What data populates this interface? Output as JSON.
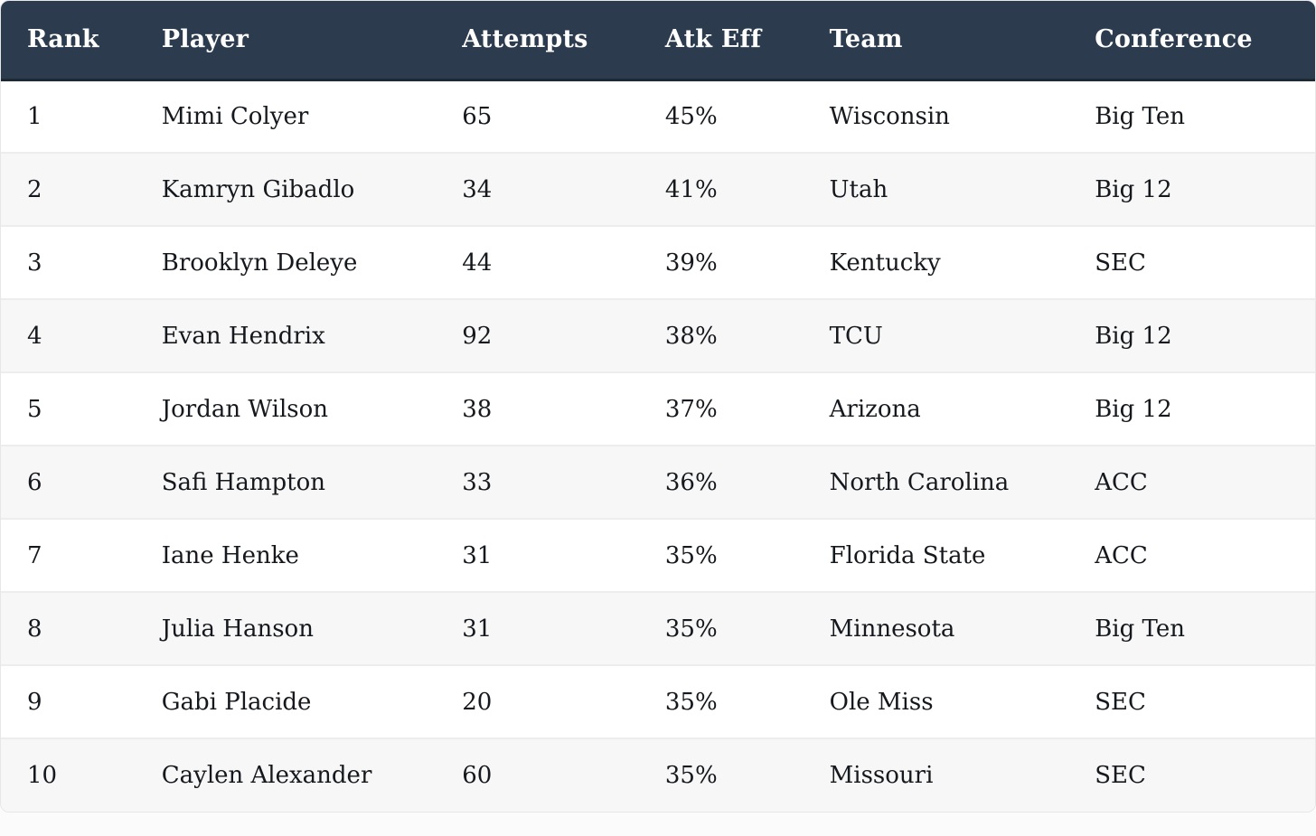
{
  "chart_data": {
    "type": "table",
    "columns": [
      "Rank",
      "Player",
      "Attempts",
      "Atk Eff",
      "Team",
      "Conference"
    ],
    "rows": [
      [
        "1",
        "Mimi Colyer",
        "65",
        "45%",
        "Wisconsin",
        "Big Ten"
      ],
      [
        "2",
        "Kamryn Gibadlo",
        "34",
        "41%",
        "Utah",
        "Big 12"
      ],
      [
        "3",
        "Brooklyn Deleye",
        "44",
        "39%",
        "Kentucky",
        "SEC"
      ],
      [
        "4",
        "Evan Hendrix",
        "92",
        "38%",
        "TCU",
        "Big 12"
      ],
      [
        "5",
        "Jordan Wilson",
        "38",
        "37%",
        "Arizona",
        "Big 12"
      ],
      [
        "6",
        "Safi Hampton",
        "33",
        "36%",
        "North Carolina",
        "ACC"
      ],
      [
        "7",
        "Iane Henke",
        "31",
        "35%",
        "Florida State",
        "ACC"
      ],
      [
        "8",
        "Julia Hanson",
        "31",
        "35%",
        "Minnesota",
        "Big Ten"
      ],
      [
        "9",
        "Gabi Placide",
        "20",
        "35%",
        "Ole Miss",
        "SEC"
      ],
      [
        "10",
        "Caylen Alexander",
        "60",
        "35%",
        "Missouri",
        "SEC"
      ]
    ]
  },
  "colors": {
    "header_bg": "#2c3b4e",
    "header_text": "#ffffff",
    "header_border": "#1e2936",
    "row_odd_bg": "#ffffff",
    "row_even_bg": "#f7f7f8",
    "row_border": "#ededee",
    "cell_text": "#15181c",
    "page_bg": "#fbfbfb",
    "card_border": "#e7e7e7"
  }
}
